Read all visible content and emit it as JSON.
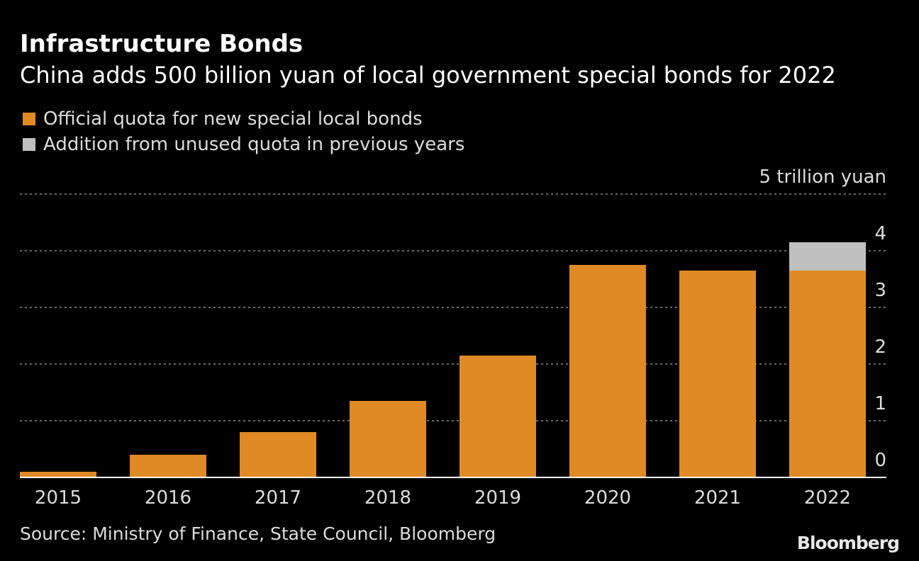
{
  "header": {
    "title": "Infrastructure Bonds",
    "subtitle": "China adds 500 billion yuan of local government special bonds for 2022"
  },
  "legend": {
    "items": [
      {
        "label": "Official quota for new special local bonds",
        "color": "#df8a25"
      },
      {
        "label": "Addition from unused quota in previous years",
        "color": "#c0c0c0"
      }
    ]
  },
  "chart_data": {
    "type": "bar",
    "stacked": true,
    "title": "Infrastructure Bonds",
    "subtitle": "China adds 500 billion yuan of local government special bonds for 2022",
    "categories": [
      "2015",
      "2016",
      "2017",
      "2018",
      "2019",
      "2020",
      "2021",
      "2022"
    ],
    "series": [
      {
        "name": "Official quota for new special local bonds",
        "color": "#df8a25",
        "values": [
          0.1,
          0.4,
          0.8,
          1.35,
          2.15,
          3.75,
          3.65,
          3.65
        ]
      },
      {
        "name": "Addition from unused quota in previous years",
        "color": "#c0c0c0",
        "values": [
          0,
          0,
          0,
          0,
          0,
          0,
          0,
          0.5
        ]
      }
    ],
    "yunit_label": "5 trillion yuan",
    "yticks": [
      0,
      1,
      2,
      3,
      4
    ],
    "ylim": [
      0,
      5
    ],
    "axis_side": "right",
    "grid": true,
    "xlabel": "",
    "ylabel": ""
  },
  "footer": {
    "source": "Source: Ministry of Finance, State Council, Bloomberg",
    "brand": "Bloomberg"
  }
}
